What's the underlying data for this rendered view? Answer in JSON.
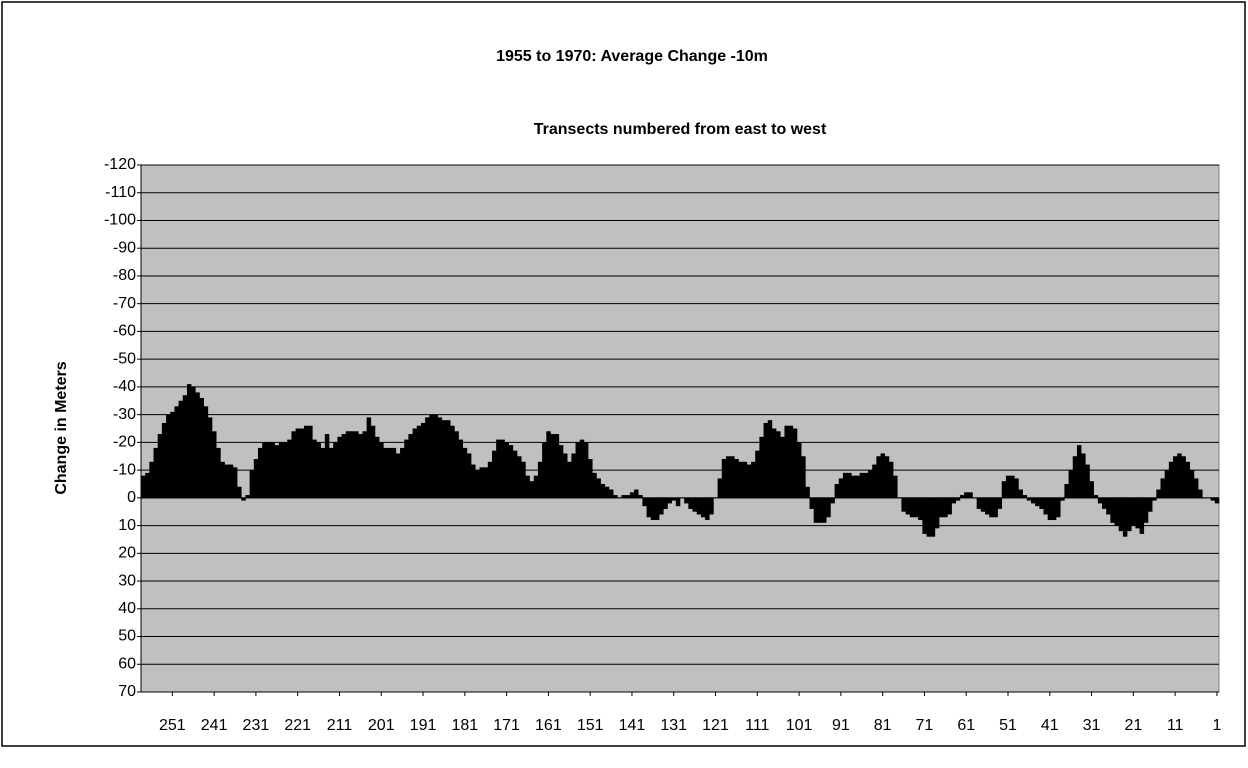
{
  "chart_data": {
    "type": "bar",
    "title": "1955 to 1970: Average Change -10m",
    "subtitle": "Transects numbered from east to west",
    "y_label": "Change in Meters",
    "color": "#000000",
    "x": [
      258,
      257,
      256,
      255,
      254,
      253,
      252,
      251,
      250,
      249,
      248,
      247,
      246,
      245,
      244,
      243,
      242,
      241,
      240,
      239,
      238,
      237,
      236,
      235,
      234,
      233,
      232,
      231,
      230,
      229,
      228,
      227,
      226,
      225,
      224,
      223,
      222,
      221,
      220,
      219,
      218,
      217,
      216,
      215,
      214,
      213,
      212,
      211,
      210,
      209,
      208,
      207,
      206,
      205,
      204,
      203,
      202,
      201,
      200,
      199,
      198,
      197,
      196,
      195,
      194,
      193,
      192,
      191,
      190,
      189,
      188,
      187,
      186,
      185,
      184,
      183,
      182,
      181,
      180,
      179,
      178,
      177,
      176,
      175,
      174,
      173,
      172,
      171,
      170,
      169,
      168,
      167,
      166,
      165,
      164,
      163,
      162,
      161,
      160,
      159,
      158,
      157,
      156,
      155,
      154,
      153,
      152,
      151,
      150,
      149,
      148,
      147,
      146,
      145,
      144,
      143,
      142,
      141,
      140,
      139,
      138,
      137,
      136,
      135,
      134,
      133,
      132,
      131,
      130,
      129,
      128,
      127,
      126,
      125,
      124,
      123,
      122,
      121,
      120,
      119,
      118,
      117,
      116,
      115,
      114,
      113,
      112,
      111,
      110,
      109,
      108,
      107,
      106,
      105,
      104,
      103,
      102,
      101,
      100,
      99,
      98,
      97,
      96,
      95,
      94,
      93,
      92,
      91,
      90,
      89,
      88,
      87,
      86,
      85,
      84,
      83,
      82,
      81,
      80,
      79,
      78,
      77,
      76,
      75,
      74,
      73,
      72,
      71,
      70,
      69,
      68,
      67,
      66,
      65,
      64,
      63,
      62,
      61,
      60,
      59,
      58,
      57,
      56,
      55,
      54,
      53,
      52,
      51,
      50,
      49,
      48,
      47,
      46,
      45,
      44,
      43,
      42,
      41,
      40,
      39,
      38,
      37,
      36,
      35,
      34,
      33,
      32,
      31,
      30,
      29,
      28,
      27,
      26,
      25,
      24,
      23,
      22,
      21,
      20,
      19,
      18,
      17,
      16,
      15,
      14,
      13,
      12,
      11,
      10,
      9,
      8,
      7,
      6,
      5,
      4,
      3,
      2,
      1
    ],
    "values": [
      -8,
      -9,
      -13,
      -18,
      -23,
      -27,
      -30,
      -31,
      -33,
      -35,
      -37,
      -41,
      -40,
      -38,
      -36,
      -33,
      -29,
      -24,
      -18,
      -13,
      -12,
      -12,
      -11,
      -4,
      1,
      -1,
      -10,
      -14,
      -18,
      -20,
      -20,
      -20,
      -19,
      -20,
      -20,
      -21,
      -24,
      -25,
      -25,
      -26,
      -26,
      -21,
      -20,
      -18,
      -23,
      -18,
      -20,
      -22,
      -23,
      -24,
      -24,
      -24,
      -23,
      -24,
      -29,
      -26,
      -22,
      -20,
      -18,
      -18,
      -18,
      -16,
      -18,
      -21,
      -23,
      -25,
      -26,
      -27,
      -29,
      -30,
      -30,
      -29,
      -28,
      -28,
      -26,
      -24,
      -21,
      -18,
      -16,
      -12,
      -10,
      -11,
      -11,
      -13,
      -17,
      -21,
      -21,
      -20,
      -19,
      -17,
      -15,
      -13,
      -8,
      -6,
      -8,
      -13,
      -20,
      -24,
      -23,
      -23,
      -19,
      -16,
      -13,
      -16,
      -20,
      -21,
      -20,
      -14,
      -9,
      -7,
      -5,
      -4,
      -3,
      -1,
      0,
      -1,
      -1,
      -2,
      -3,
      -1,
      3,
      7,
      8,
      8,
      6,
      4,
      2,
      1,
      3,
      0,
      2,
      4,
      5,
      6,
      7,
      8,
      6,
      0,
      -7,
      -14,
      -15,
      -15,
      -14,
      -13,
      -13,
      -12,
      -13,
      -17,
      -22,
      -27,
      -28,
      -25,
      -24,
      -22,
      -26,
      -26,
      -25,
      -20,
      -15,
      -4,
      4,
      9,
      9,
      9,
      7,
      2,
      -5,
      -7,
      -9,
      -9,
      -8,
      -8,
      -9,
      -9,
      -10,
      -12,
      -15,
      -16,
      -15,
      -13,
      -8,
      0,
      5,
      6,
      7,
      7,
      8,
      13,
      14,
      14,
      11,
      7,
      7,
      6,
      2,
      1,
      -1,
      -2,
      -2,
      0,
      4,
      5,
      6,
      7,
      7,
      4,
      -6,
      -8,
      -8,
      -7,
      -3,
      -1,
      1,
      2,
      3,
      4,
      6,
      8,
      8,
      7,
      1,
      -5,
      -10,
      -15,
      -19,
      -16,
      -12,
      -6,
      -1,
      2,
      4,
      6,
      9,
      10,
      12,
      14,
      12,
      10,
      11,
      13,
      9,
      5,
      1,
      -3,
      -7,
      -10,
      -13,
      -15,
      -16,
      -15,
      -13,
      -10,
      -7,
      -3,
      0,
      0,
      1,
      2
    ],
    "xlim": [
      258.5,
      0.5
    ],
    "xticks": [
      251,
      241,
      231,
      221,
      211,
      201,
      191,
      181,
      171,
      161,
      151,
      141,
      131,
      121,
      111,
      101,
      91,
      81,
      71,
      61,
      51,
      41,
      31,
      21,
      11,
      1
    ],
    "ylim": [
      70,
      -120
    ],
    "yticks": [
      -120,
      -110,
      -100,
      -90,
      -80,
      -70,
      -60,
      -50,
      -40,
      -30,
      -20,
      -10,
      0,
      10,
      20,
      30,
      40,
      50,
      60,
      70
    ],
    "grid": true
  }
}
